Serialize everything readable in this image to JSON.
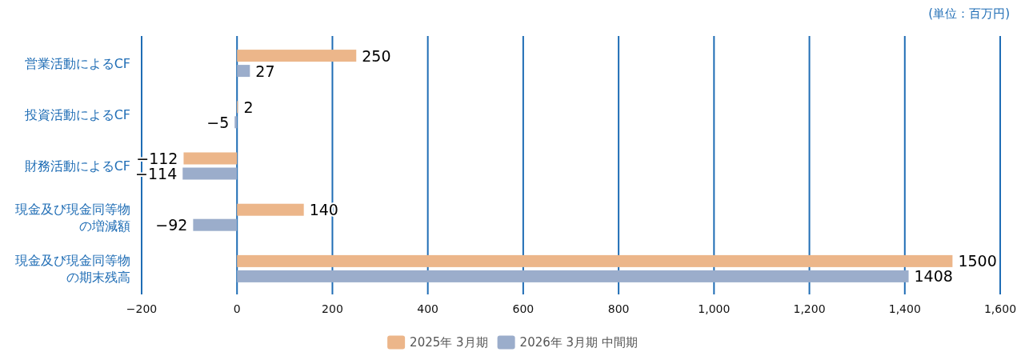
{
  "chart_data": {
    "type": "bar",
    "orientation": "horizontal",
    "annotations": [
      "(単位：百万円)"
    ],
    "categories": [
      "営業活動によるCF",
      "投資活動によるCF",
      "財務活動によるCF",
      "現金及び現金同等物の増減額",
      "現金及び現金同等物の期末残高"
    ],
    "series": [
      {
        "name": "2025年 3月期",
        "color": "#ecb68a",
        "values": [
          250,
          2,
          -112,
          140,
          1500
        ],
        "value_labels": [
          "250",
          "2",
          "−112",
          "140",
          "1500"
        ]
      },
      {
        "name": "2026年 3月期 中間期",
        "color": "#9badcb",
        "values": [
          27,
          -5,
          -114,
          -92,
          1408
        ],
        "value_labels": [
          "27",
          "−5",
          "−114",
          "−92",
          "1408"
        ]
      }
    ],
    "xlim": [
      -200,
      1600
    ],
    "xticks": [
      {
        "value": -200,
        "label": "−200"
      },
      0,
      200,
      400,
      600,
      800,
      {
        "value": 1000,
        "label": "1,000"
      },
      {
        "value": 1200,
        "label": "1,200"
      },
      {
        "value": 1400,
        "label": "1,400"
      },
      {
        "value": 1600,
        "label": "1,600"
      }
    ],
    "grid": "x",
    "legend": "bottom"
  }
}
